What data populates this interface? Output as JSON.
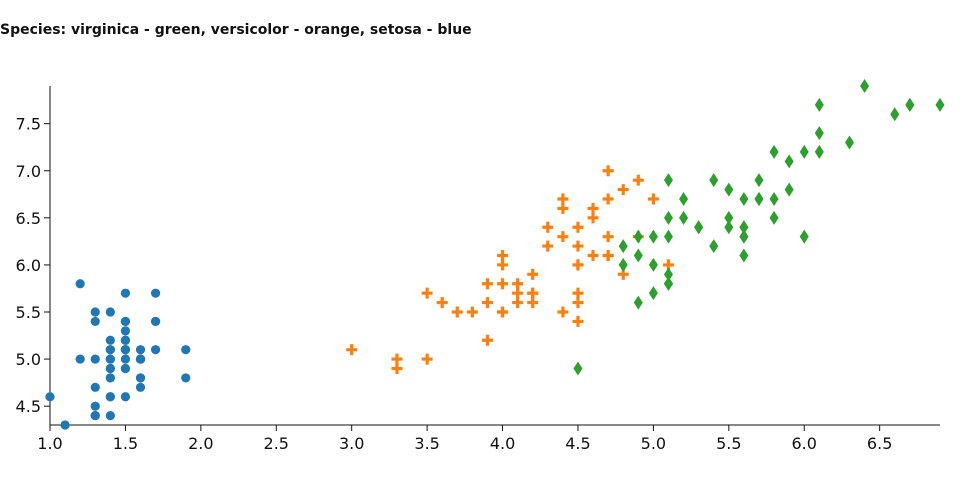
{
  "chart_data": {
    "type": "scatter",
    "title": "Species: virginica - green, versicolor - orange, setosa - blue",
    "xlabel": "",
    "ylabel": "",
    "xlim": [
      1.0,
      6.9
    ],
    "ylim": [
      4.3,
      7.9
    ],
    "x_ticks": [
      "1.0",
      "1.5",
      "2.0",
      "2.5",
      "3.0",
      "3.5",
      "4.0",
      "4.5",
      "5.0",
      "5.5",
      "6.0",
      "6.5"
    ],
    "y_ticks": [
      "4.5",
      "5.0",
      "5.5",
      "6.0",
      "6.5",
      "7.0",
      "7.5"
    ],
    "grid": false,
    "series": [
      {
        "color": "#1f77b4",
        "marker": "circle",
        "points": [
          [
            1.4,
            5.1
          ],
          [
            1.4,
            4.9
          ],
          [
            1.3,
            4.7
          ],
          [
            1.5,
            4.6
          ],
          [
            1.4,
            5.0
          ],
          [
            1.7,
            5.4
          ],
          [
            1.4,
            4.6
          ],
          [
            1.5,
            5.0
          ],
          [
            1.4,
            4.4
          ],
          [
            1.5,
            4.9
          ],
          [
            1.5,
            5.4
          ],
          [
            1.6,
            4.8
          ],
          [
            1.4,
            4.8
          ],
          [
            1.1,
            4.3
          ],
          [
            1.2,
            5.8
          ],
          [
            1.5,
            5.7
          ],
          [
            1.3,
            5.4
          ],
          [
            1.4,
            5.1
          ],
          [
            1.7,
            5.7
          ],
          [
            1.5,
            5.1
          ],
          [
            1.7,
            5.4
          ],
          [
            1.5,
            5.1
          ],
          [
            1.0,
            4.6
          ],
          [
            1.7,
            5.1
          ],
          [
            1.9,
            4.8
          ],
          [
            1.6,
            5.0
          ],
          [
            1.6,
            5.0
          ],
          [
            1.5,
            5.2
          ],
          [
            1.4,
            5.2
          ],
          [
            1.6,
            4.7
          ],
          [
            1.6,
            4.8
          ],
          [
            1.5,
            5.4
          ],
          [
            1.5,
            5.2
          ],
          [
            1.4,
            5.5
          ],
          [
            1.5,
            4.9
          ],
          [
            1.2,
            5.0
          ],
          [
            1.3,
            5.5
          ],
          [
            1.4,
            4.9
          ],
          [
            1.3,
            4.4
          ],
          [
            1.5,
            5.1
          ],
          [
            1.3,
            5.0
          ],
          [
            1.3,
            4.5
          ],
          [
            1.3,
            4.4
          ],
          [
            1.6,
            5.0
          ],
          [
            1.9,
            5.1
          ],
          [
            1.4,
            4.8
          ],
          [
            1.6,
            5.1
          ],
          [
            1.4,
            4.6
          ],
          [
            1.5,
            5.3
          ],
          [
            1.4,
            5.0
          ]
        ]
      },
      {
        "color": "#ff7f0e",
        "marker": "plus",
        "points": [
          [
            4.7,
            7.0
          ],
          [
            4.5,
            6.4
          ],
          [
            4.9,
            6.9
          ],
          [
            4.0,
            5.5
          ],
          [
            4.6,
            6.5
          ],
          [
            4.5,
            5.7
          ],
          [
            4.7,
            6.3
          ],
          [
            3.3,
            4.9
          ],
          [
            4.6,
            6.6
          ],
          [
            3.9,
            5.2
          ],
          [
            3.5,
            5.0
          ],
          [
            4.2,
            5.9
          ],
          [
            4.0,
            6.0
          ],
          [
            4.7,
            6.1
          ],
          [
            3.6,
            5.6
          ],
          [
            4.4,
            6.7
          ],
          [
            4.5,
            5.6
          ],
          [
            4.1,
            5.8
          ],
          [
            4.5,
            6.2
          ],
          [
            3.9,
            5.6
          ],
          [
            4.8,
            5.9
          ],
          [
            4.0,
            6.1
          ],
          [
            4.9,
            6.3
          ],
          [
            4.7,
            6.1
          ],
          [
            4.3,
            6.4
          ],
          [
            4.4,
            6.6
          ],
          [
            4.8,
            6.8
          ],
          [
            5.0,
            6.7
          ],
          [
            4.5,
            6.0
          ],
          [
            3.5,
            5.7
          ],
          [
            3.8,
            5.5
          ],
          [
            3.7,
            5.5
          ],
          [
            3.9,
            5.8
          ],
          [
            5.1,
            6.0
          ],
          [
            4.5,
            5.4
          ],
          [
            4.5,
            6.0
          ],
          [
            4.7,
            6.7
          ],
          [
            4.4,
            6.3
          ],
          [
            4.1,
            5.6
          ],
          [
            4.0,
            5.5
          ],
          [
            4.4,
            5.5
          ],
          [
            4.6,
            6.1
          ],
          [
            4.0,
            5.8
          ],
          [
            3.3,
            5.0
          ],
          [
            4.2,
            5.6
          ],
          [
            4.2,
            5.7
          ],
          [
            4.2,
            5.7
          ],
          [
            4.3,
            6.2
          ],
          [
            3.0,
            5.1
          ],
          [
            4.1,
            5.7
          ]
        ]
      },
      {
        "color": "#2ca02c",
        "marker": "diamond",
        "points": [
          [
            6.0,
            6.3
          ],
          [
            5.1,
            5.8
          ],
          [
            5.9,
            7.1
          ],
          [
            5.6,
            6.3
          ],
          [
            5.8,
            6.5
          ],
          [
            6.6,
            7.6
          ],
          [
            4.5,
            4.9
          ],
          [
            6.3,
            7.3
          ],
          [
            5.8,
            6.7
          ],
          [
            6.1,
            7.2
          ],
          [
            5.1,
            6.5
          ],
          [
            5.3,
            6.4
          ],
          [
            5.5,
            6.8
          ],
          [
            5.0,
            5.7
          ],
          [
            5.1,
            5.8
          ],
          [
            5.3,
            6.4
          ],
          [
            5.5,
            6.5
          ],
          [
            6.7,
            7.7
          ],
          [
            6.9,
            7.7
          ],
          [
            5.0,
            6.0
          ],
          [
            5.7,
            6.9
          ],
          [
            4.9,
            5.6
          ],
          [
            6.7,
            7.7
          ],
          [
            4.9,
            6.3
          ],
          [
            5.7,
            6.7
          ],
          [
            6.0,
            7.2
          ],
          [
            4.8,
            6.2
          ],
          [
            4.9,
            6.1
          ],
          [
            5.6,
            6.4
          ],
          [
            5.8,
            7.2
          ],
          [
            6.1,
            7.4
          ],
          [
            6.4,
            7.9
          ],
          [
            5.6,
            6.4
          ],
          [
            5.1,
            6.3
          ],
          [
            5.6,
            6.1
          ],
          [
            6.1,
            7.7
          ],
          [
            5.6,
            6.3
          ],
          [
            5.5,
            6.4
          ],
          [
            4.8,
            6.0
          ],
          [
            5.4,
            6.9
          ],
          [
            5.6,
            6.7
          ],
          [
            5.1,
            6.9
          ],
          [
            5.1,
            5.8
          ],
          [
            5.9,
            6.8
          ],
          [
            5.7,
            6.7
          ],
          [
            5.2,
            6.7
          ],
          [
            5.0,
            6.3
          ],
          [
            5.2,
            6.5
          ],
          [
            5.4,
            6.2
          ],
          [
            5.1,
            5.9
          ]
        ]
      }
    ]
  }
}
